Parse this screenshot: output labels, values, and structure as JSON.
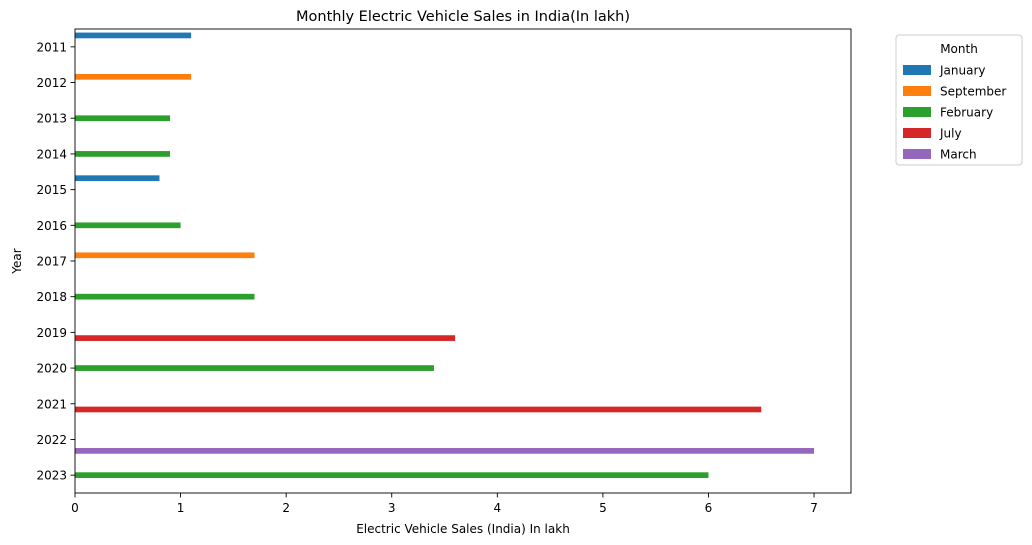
{
  "chart_data": {
    "type": "bar",
    "orientation": "horizontal",
    "title": "Monthly Electric Vehicle Sales in India(In lakh)",
    "xlabel": "Electric Vehicle Sales (India) In lakh",
    "ylabel": "Year",
    "xlim": [
      0,
      7.35
    ],
    "x_ticks": [
      0,
      1,
      2,
      3,
      4,
      5,
      6,
      7
    ],
    "grid": false,
    "legend_position": "outside-top-right",
    "legend_title": "Month",
    "categories": [
      "2011",
      "2012",
      "2013",
      "2014",
      "2015",
      "2016",
      "2017",
      "2018",
      "2019",
      "2020",
      "2021",
      "2022",
      "2023"
    ],
    "series": [
      {
        "name": "January",
        "color": "#1f77b4",
        "values": [
          1.1,
          null,
          null,
          null,
          0.8,
          null,
          null,
          null,
          null,
          null,
          null,
          null,
          null
        ]
      },
      {
        "name": "September",
        "color": "#ff7f0e",
        "values": [
          null,
          1.1,
          null,
          null,
          null,
          null,
          1.7,
          null,
          null,
          null,
          null,
          null,
          null
        ]
      },
      {
        "name": "February",
        "color": "#2ca02c",
        "values": [
          null,
          null,
          0.9,
          0.9,
          null,
          1.0,
          null,
          1.7,
          null,
          3.4,
          null,
          null,
          6.0
        ]
      },
      {
        "name": "July",
        "color": "#d62728",
        "values": [
          null,
          null,
          null,
          null,
          null,
          null,
          null,
          null,
          3.6,
          null,
          6.5,
          null,
          null
        ]
      },
      {
        "name": "March",
        "color": "#9467bd",
        "values": [
          null,
          null,
          null,
          null,
          null,
          null,
          null,
          null,
          null,
          null,
          null,
          7.0,
          null
        ]
      }
    ]
  }
}
